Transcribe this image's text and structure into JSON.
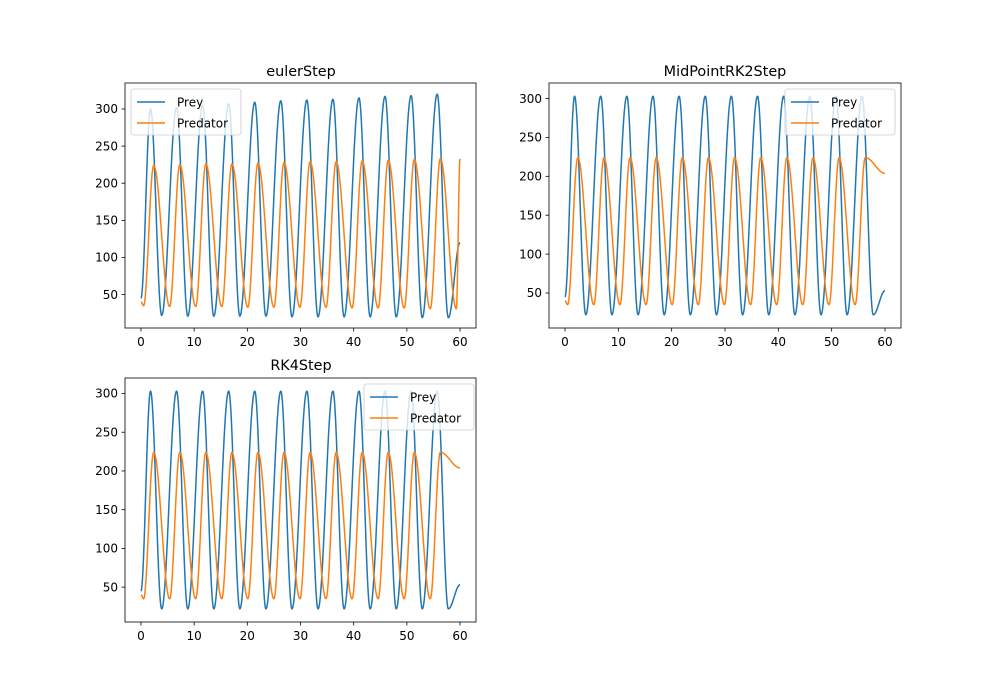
{
  "chart_data": [
    {
      "type": "line",
      "title": "eulerStep",
      "xlabel": "",
      "ylabel": "",
      "xlim": [
        -3,
        63
      ],
      "ylim": [
        5,
        335
      ],
      "xticks": [
        0,
        10,
        20,
        30,
        40,
        50,
        60
      ],
      "yticks": [
        50,
        100,
        150,
        200,
        250,
        300
      ],
      "legend_position": "upper-left",
      "x_range": [
        0,
        60
      ],
      "series": [
        {
          "name": "Prey",
          "color": "#1f77b4",
          "period": 4.85,
          "peak_times": [
            1.8,
            6.7,
            11.6,
            16.5,
            21.4,
            26.3,
            31.2,
            36.1,
            41.0,
            45.9,
            50.8,
            55.7
          ],
          "peaks": [
            300,
            302,
            305,
            307,
            309,
            311,
            312,
            313,
            315,
            317,
            318,
            320
          ],
          "trough_times": [
            3.9,
            8.8,
            13.7,
            18.6,
            23.5,
            28.4,
            33.3,
            38.2,
            43.1,
            48.0,
            52.9,
            57.8
          ],
          "troughs": [
            22,
            21,
            21,
            21,
            21,
            20,
            20,
            20,
            20,
            20,
            19,
            19
          ],
          "start": 45,
          "end": 120
        },
        {
          "name": "Predator",
          "color": "#ff7f0e",
          "period": 4.85,
          "peak_times": [
            2.4,
            7.3,
            12.2,
            17.1,
            22.0,
            26.9,
            31.8,
            36.7,
            41.6,
            46.5,
            51.4,
            56.3
          ],
          "peaks": [
            224,
            225,
            226,
            226,
            227,
            228,
            229,
            229,
            230,
            231,
            232,
            233
          ],
          "trough_times": [
            0.5,
            5.4,
            10.3,
            15.2,
            20.1,
            25.0,
            29.9,
            34.8,
            39.7,
            44.6,
            49.5,
            54.4,
            59.3
          ],
          "troughs": [
            35,
            34,
            34,
            34,
            33,
            33,
            33,
            33,
            32,
            32,
            32,
            31,
            31
          ],
          "start": 40,
          "end": 233
        }
      ]
    },
    {
      "type": "line",
      "title": "MidPointRK2Step",
      "xlabel": "",
      "ylabel": "",
      "xlim": [
        -3,
        63
      ],
      "ylim": [
        5,
        320
      ],
      "xticks": [
        0,
        10,
        20,
        30,
        40,
        50,
        60
      ],
      "yticks": [
        50,
        100,
        150,
        200,
        250,
        300
      ],
      "legend_position": "upper-right",
      "x_range": [
        0,
        60
      ],
      "series": [
        {
          "name": "Prey",
          "color": "#1f77b4",
          "period": 4.85,
          "peak_times": [
            1.8,
            6.7,
            11.6,
            16.5,
            21.4,
            26.3,
            31.2,
            36.1,
            41.0,
            45.9,
            50.8,
            55.7
          ],
          "peaks": [
            303,
            303,
            303,
            303,
            303,
            303,
            303,
            303,
            303,
            303,
            303,
            303
          ],
          "trough_times": [
            3.9,
            8.8,
            13.7,
            18.6,
            23.5,
            28.4,
            33.3,
            38.2,
            43.1,
            48.0,
            52.9,
            57.8
          ],
          "troughs": [
            22,
            22,
            22,
            22,
            22,
            22,
            22,
            22,
            22,
            22,
            22,
            22
          ],
          "start": 45,
          "end": 53
        },
        {
          "name": "Predator",
          "color": "#ff7f0e",
          "period": 4.85,
          "peak_times": [
            2.4,
            7.3,
            12.2,
            17.1,
            22.0,
            26.9,
            31.8,
            36.7,
            41.6,
            46.5,
            51.4,
            56.3
          ],
          "peaks": [
            224,
            224,
            224,
            224,
            224,
            224,
            224,
            224,
            224,
            224,
            224,
            224
          ],
          "trough_times": [
            0.5,
            5.4,
            10.3,
            15.2,
            20.1,
            25.0,
            29.9,
            34.8,
            39.7,
            44.6,
            49.5,
            54.4
          ],
          "troughs": [
            35,
            35,
            35,
            35,
            35,
            35,
            35,
            35,
            35,
            35,
            35,
            35
          ],
          "start": 40,
          "end": 204
        }
      ]
    },
    {
      "type": "line",
      "title": "RK4Step",
      "xlabel": "",
      "ylabel": "",
      "xlim": [
        -3,
        63
      ],
      "ylim": [
        5,
        320
      ],
      "xticks": [
        0,
        10,
        20,
        30,
        40,
        50,
        60
      ],
      "yticks": [
        50,
        100,
        150,
        200,
        250,
        300
      ],
      "legend_position": "upper-right",
      "x_range": [
        0,
        60
      ],
      "series": [
        {
          "name": "Prey",
          "color": "#1f77b4",
          "period": 4.85,
          "peak_times": [
            1.8,
            6.7,
            11.6,
            16.5,
            21.4,
            26.3,
            31.2,
            36.1,
            41.0,
            45.9,
            50.8,
            55.7
          ],
          "peaks": [
            303,
            303,
            303,
            303,
            303,
            303,
            303,
            303,
            303,
            303,
            303,
            303
          ],
          "trough_times": [
            3.9,
            8.8,
            13.7,
            18.6,
            23.5,
            28.4,
            33.3,
            38.2,
            43.1,
            48.0,
            52.9,
            57.8
          ],
          "troughs": [
            22,
            22,
            22,
            22,
            22,
            22,
            22,
            22,
            22,
            22,
            22,
            22
          ],
          "start": 45,
          "end": 53
        },
        {
          "name": "Predator",
          "color": "#ff7f0e",
          "period": 4.85,
          "peak_times": [
            2.4,
            7.3,
            12.2,
            17.1,
            22.0,
            26.9,
            31.8,
            36.7,
            41.6,
            46.5,
            51.4,
            56.3
          ],
          "peaks": [
            224,
            224,
            224,
            224,
            224,
            224,
            224,
            224,
            224,
            224,
            224,
            224
          ],
          "trough_times": [
            0.5,
            5.4,
            10.3,
            15.2,
            20.1,
            25.0,
            29.9,
            34.8,
            39.7,
            44.6,
            49.5,
            54.4
          ],
          "troughs": [
            35,
            35,
            35,
            35,
            35,
            35,
            35,
            35,
            35,
            35,
            35,
            35
          ],
          "start": 40,
          "end": 204
        }
      ]
    }
  ]
}
